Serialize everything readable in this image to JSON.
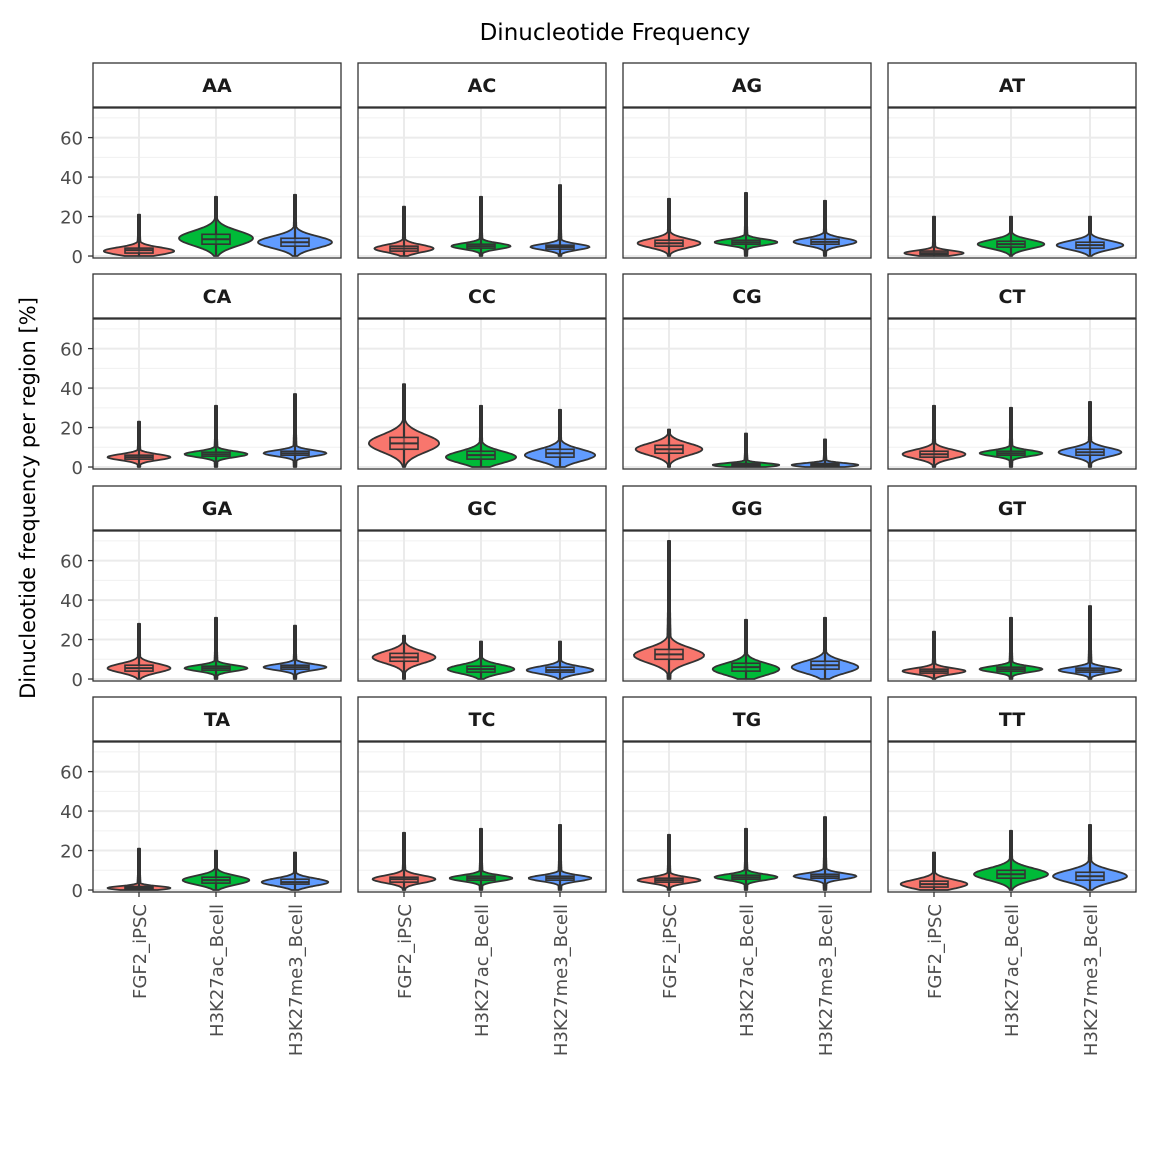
{
  "chart_data": {
    "type": "violin",
    "title": "Dinucleotide Frequency",
    "xlabel": "",
    "ylabel": "Dinucleotide frequency per region [%]",
    "ylim": [
      -1,
      75
    ],
    "yticks": [
      0,
      20,
      40,
      60
    ],
    "grid": true,
    "legend": "none",
    "facet_layout": {
      "rows": 4,
      "cols": 4
    },
    "categories": [
      "FGF2_iPSC",
      "H3K27ac_Bcell",
      "H3K27me3_Bcell"
    ],
    "category_colors": [
      "#F8766D",
      "#00BA38",
      "#619CFF"
    ],
    "facets": [
      {
        "label": "AA",
        "violins": [
          {
            "category": "FGF2_iPSC",
            "min": 0,
            "max": 21,
            "q1": 1.5,
            "median": 3,
            "q3": 4,
            "mode": 2.5,
            "spread": 0.95
          },
          {
            "category": "H3K27ac_Bcell",
            "min": 0,
            "max": 30,
            "q1": 6,
            "median": 8.5,
            "q3": 11,
            "mode": 9,
            "spread": 1.0
          },
          {
            "category": "H3K27me3_Bcell",
            "min": 0,
            "max": 31,
            "q1": 5,
            "median": 7,
            "q3": 9,
            "mode": 7,
            "spread": 1.0
          }
        ]
      },
      {
        "label": "AC",
        "violins": [
          {
            "category": "FGF2_iPSC",
            "min": 0,
            "max": 25,
            "q1": 2.5,
            "median": 3.8,
            "q3": 5,
            "mode": 3.8,
            "spread": 0.8
          },
          {
            "category": "H3K27ac_Bcell",
            "min": 0,
            "max": 30,
            "q1": 4,
            "median": 5,
            "q3": 6,
            "mode": 5,
            "spread": 0.8
          },
          {
            "category": "H3K27me3_Bcell",
            "min": 0,
            "max": 36,
            "q1": 3.5,
            "median": 4.6,
            "q3": 5.5,
            "mode": 4.6,
            "spread": 0.8
          }
        ]
      },
      {
        "label": "AG",
        "violins": [
          {
            "category": "FGF2_iPSC",
            "min": 0,
            "max": 29,
            "q1": 5,
            "median": 6.5,
            "q3": 8,
            "mode": 6.5,
            "spread": 0.85
          },
          {
            "category": "H3K27ac_Bcell",
            "min": 0,
            "max": 32,
            "q1": 6,
            "median": 7,
            "q3": 8,
            "mode": 7,
            "spread": 0.85
          },
          {
            "category": "H3K27me3_Bcell",
            "min": 0,
            "max": 28,
            "q1": 6,
            "median": 7.2,
            "q3": 8.5,
            "mode": 7.2,
            "spread": 0.85
          }
        ]
      },
      {
        "label": "AT",
        "violins": [
          {
            "category": "FGF2_iPSC",
            "min": 0,
            "max": 20,
            "q1": 0.8,
            "median": 1.5,
            "q3": 2.5,
            "mode": 1.5,
            "spread": 0.8
          },
          {
            "category": "H3K27ac_Bcell",
            "min": 0,
            "max": 20,
            "q1": 4.5,
            "median": 6,
            "q3": 7.5,
            "mode": 6,
            "spread": 0.9
          },
          {
            "category": "H3K27me3_Bcell",
            "min": 0,
            "max": 20,
            "q1": 4,
            "median": 5.5,
            "q3": 7,
            "mode": 5.5,
            "spread": 0.9
          }
        ]
      },
      {
        "label": "CA",
        "violins": [
          {
            "category": "FGF2_iPSC",
            "min": 0,
            "max": 23,
            "q1": 4,
            "median": 5,
            "q3": 6,
            "mode": 5,
            "spread": 0.85
          },
          {
            "category": "H3K27ac_Bcell",
            "min": 0,
            "max": 31,
            "q1": 5.5,
            "median": 6.5,
            "q3": 7.5,
            "mode": 6.5,
            "spread": 0.85
          },
          {
            "category": "H3K27me3_Bcell",
            "min": 0,
            "max": 37,
            "q1": 6,
            "median": 7,
            "q3": 8,
            "mode": 7,
            "spread": 0.85
          }
        ]
      },
      {
        "label": "CC",
        "violins": [
          {
            "category": "FGF2_iPSC",
            "min": 0,
            "max": 42,
            "q1": 9,
            "median": 12,
            "q3": 15,
            "mode": 12,
            "spread": 0.95
          },
          {
            "category": "H3K27ac_Bcell",
            "min": 0,
            "max": 31,
            "q1": 4,
            "median": 6,
            "q3": 8,
            "mode": 5,
            "spread": 0.95
          },
          {
            "category": "H3K27me3_Bcell",
            "min": 0,
            "max": 29,
            "q1": 5,
            "median": 7,
            "q3": 9,
            "mode": 6,
            "spread": 0.95
          }
        ]
      },
      {
        "label": "CG",
        "violins": [
          {
            "category": "FGF2_iPSC",
            "min": 0,
            "max": 19,
            "q1": 7,
            "median": 9,
            "q3": 11,
            "mode": 9,
            "spread": 0.9
          },
          {
            "category": "H3K27ac_Bcell",
            "min": 0,
            "max": 17,
            "q1": 0.5,
            "median": 1,
            "q3": 1.8,
            "mode": 1,
            "spread": 0.9
          },
          {
            "category": "H3K27me3_Bcell",
            "min": 0,
            "max": 14,
            "q1": 0.5,
            "median": 1,
            "q3": 1.8,
            "mode": 1,
            "spread": 0.9
          }
        ]
      },
      {
        "label": "CT",
        "violins": [
          {
            "category": "FGF2_iPSC",
            "min": 0,
            "max": 31,
            "q1": 5,
            "median": 6.5,
            "q3": 8,
            "mode": 6.5,
            "spread": 0.85
          },
          {
            "category": "H3K27ac_Bcell",
            "min": 0,
            "max": 30,
            "q1": 6,
            "median": 7,
            "q3": 8,
            "mode": 7,
            "spread": 0.85
          },
          {
            "category": "H3K27me3_Bcell",
            "min": 0,
            "max": 33,
            "q1": 6,
            "median": 7.5,
            "q3": 9,
            "mode": 7.5,
            "spread": 0.85
          }
        ]
      },
      {
        "label": "GA",
        "violins": [
          {
            "category": "FGF2_iPSC",
            "min": 0,
            "max": 28,
            "q1": 4,
            "median": 5.5,
            "q3": 7,
            "mode": 5.5,
            "spread": 0.85
          },
          {
            "category": "H3K27ac_Bcell",
            "min": 0,
            "max": 31,
            "q1": 4.5,
            "median": 5.5,
            "q3": 6.5,
            "mode": 5.5,
            "spread": 0.85
          },
          {
            "category": "H3K27me3_Bcell",
            "min": 0,
            "max": 27,
            "q1": 5,
            "median": 6,
            "q3": 7,
            "mode": 6,
            "spread": 0.85
          }
        ]
      },
      {
        "label": "GC",
        "violins": [
          {
            "category": "FGF2_iPSC",
            "min": 0,
            "max": 22,
            "q1": 9,
            "median": 11,
            "q3": 13,
            "mode": 11,
            "spread": 0.85
          },
          {
            "category": "H3K27ac_Bcell",
            "min": 0,
            "max": 19,
            "q1": 3.5,
            "median": 5,
            "q3": 6.5,
            "mode": 5,
            "spread": 0.9
          },
          {
            "category": "H3K27me3_Bcell",
            "min": 0,
            "max": 19,
            "q1": 3.5,
            "median": 4.5,
            "q3": 6,
            "mode": 4.5,
            "spread": 0.9
          }
        ]
      },
      {
        "label": "GG",
        "violins": [
          {
            "category": "FGF2_iPSC",
            "min": 0,
            "max": 70,
            "q1": 10,
            "median": 12.5,
            "q3": 15,
            "mode": 12,
            "spread": 0.95
          },
          {
            "category": "H3K27ac_Bcell",
            "min": 0,
            "max": 30,
            "q1": 4,
            "median": 6,
            "q3": 8,
            "mode": 5,
            "spread": 0.9
          },
          {
            "category": "H3K27me3_Bcell",
            "min": 0,
            "max": 31,
            "q1": 5,
            "median": 7,
            "q3": 9,
            "mode": 6,
            "spread": 0.9
          }
        ]
      },
      {
        "label": "GT",
        "violins": [
          {
            "category": "FGF2_iPSC",
            "min": 0,
            "max": 24,
            "q1": 3,
            "median": 4,
            "q3": 5,
            "mode": 4,
            "spread": 0.85
          },
          {
            "category": "H3K27ac_Bcell",
            "min": 0,
            "max": 31,
            "q1": 4,
            "median": 5,
            "q3": 6,
            "mode": 5,
            "spread": 0.85
          },
          {
            "category": "H3K27me3_Bcell",
            "min": 0,
            "max": 37,
            "q1": 3.5,
            "median": 4.5,
            "q3": 5.5,
            "mode": 4.5,
            "spread": 0.85
          }
        ]
      },
      {
        "label": "TA",
        "violins": [
          {
            "category": "FGF2_iPSC",
            "min": 0,
            "max": 21,
            "q1": 0.5,
            "median": 1,
            "q3": 1.8,
            "mode": 1,
            "spread": 0.85
          },
          {
            "category": "H3K27ac_Bcell",
            "min": 0,
            "max": 20,
            "q1": 3.5,
            "median": 5,
            "q3": 6.5,
            "mode": 5,
            "spread": 0.9
          },
          {
            "category": "H3K27me3_Bcell",
            "min": 0,
            "max": 19,
            "q1": 3,
            "median": 4,
            "q3": 5.5,
            "mode": 4,
            "spread": 0.9
          }
        ]
      },
      {
        "label": "TC",
        "violins": [
          {
            "category": "FGF2_iPSC",
            "min": 0,
            "max": 29,
            "q1": 4,
            "median": 5.5,
            "q3": 6.5,
            "mode": 5.5,
            "spread": 0.85
          },
          {
            "category": "H3K27ac_Bcell",
            "min": 0,
            "max": 31,
            "q1": 5,
            "median": 6,
            "q3": 7,
            "mode": 6,
            "spread": 0.85
          },
          {
            "category": "H3K27me3_Bcell",
            "min": 0,
            "max": 33,
            "q1": 5,
            "median": 6,
            "q3": 7,
            "mode": 6,
            "spread": 0.85
          }
        ]
      },
      {
        "label": "TG",
        "violins": [
          {
            "category": "FGF2_iPSC",
            "min": 0,
            "max": 28,
            "q1": 4,
            "median": 5,
            "q3": 6,
            "mode": 5,
            "spread": 0.85
          },
          {
            "category": "H3K27ac_Bcell",
            "min": 0,
            "max": 31,
            "q1": 5.5,
            "median": 6.5,
            "q3": 7.5,
            "mode": 6.5,
            "spread": 0.85
          },
          {
            "category": "H3K27me3_Bcell",
            "min": 0,
            "max": 37,
            "q1": 6,
            "median": 7,
            "q3": 8,
            "mode": 7,
            "spread": 0.85
          }
        ]
      },
      {
        "label": "TT",
        "violins": [
          {
            "category": "FGF2_iPSC",
            "min": 0,
            "max": 19,
            "q1": 1.5,
            "median": 3,
            "q3": 4.5,
            "mode": 3,
            "spread": 0.9
          },
          {
            "category": "H3K27ac_Bcell",
            "min": 0,
            "max": 30,
            "q1": 6,
            "median": 8,
            "q3": 10,
            "mode": 8,
            "spread": 1.0
          },
          {
            "category": "H3K27me3_Bcell",
            "min": 0,
            "max": 33,
            "q1": 5,
            "median": 7,
            "q3": 9,
            "mode": 7,
            "spread": 1.0
          }
        ]
      }
    ]
  }
}
